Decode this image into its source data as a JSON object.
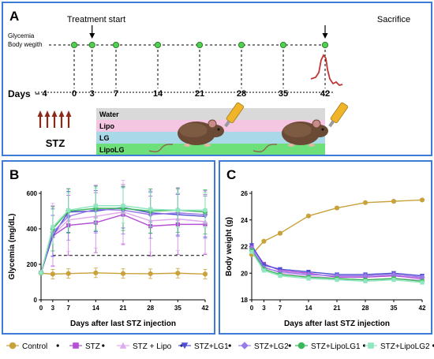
{
  "panel_a": {
    "letter": "A",
    "label_glycemia": "Glycemia",
    "label_bodyweight": "Body wegith",
    "treatment_label": "Treatment start",
    "sacrifice_label": "Sacrifice",
    "days_label": "Days",
    "stz_label": "STZ",
    "timeline_days": [
      "– 4",
      "0",
      "3",
      "7",
      "14",
      "21",
      "28",
      "35",
      "42"
    ],
    "timeline_values": [
      -4,
      0,
      3,
      7,
      14,
      21,
      28,
      35,
      42
    ],
    "measurement_days": [
      0,
      3,
      7,
      14,
      21,
      28,
      35,
      42
    ],
    "treatment_day": 3,
    "sacrifice_day": 42,
    "groups": [
      {
        "label": "Water",
        "color": "#d9d9d9"
      },
      {
        "label": "Lipo",
        "color": "#f4c6e2"
      },
      {
        "label": "LG",
        "color": "#a9d8e8"
      },
      {
        "label": "LipoLG",
        "color": "#6ee07a"
      }
    ]
  },
  "chart_data": [
    {
      "type": "line",
      "panel": "B",
      "xlabel": "Days after last STZ injection",
      "ylabel": "Glycemia (mg/dL)",
      "x": [
        0,
        3,
        7,
        14,
        21,
        28,
        35,
        42
      ],
      "xticks": [
        "0",
        "3",
        "7",
        "14",
        "21",
        "28",
        "35",
        "42"
      ],
      "ylim": [
        0,
        600
      ],
      "yticks": [
        "0",
        "200",
        "400",
        "600"
      ],
      "threshold": 250,
      "series": [
        {
          "name": "Control",
          "color": "#c9a23c",
          "values": [
            150,
            145,
            148,
            152,
            148,
            147,
            150,
            145
          ]
        },
        {
          "name": "STZ",
          "color": "#b44fd6",
          "values": [
            152,
            360,
            420,
            435,
            480,
            415,
            425,
            425
          ]
        },
        {
          "name": "STZ + Lipo",
          "color": "#e0a8ef",
          "values": [
            152,
            365,
            450,
            470,
            495,
            445,
            455,
            440
          ]
        },
        {
          "name": "STZ+LG1",
          "color": "#4f4fd6",
          "values": [
            152,
            360,
            495,
            500,
            520,
            490,
            480,
            470
          ]
        },
        {
          "name": "STZ+LG2",
          "color": "#9a7ae6",
          "values": [
            152,
            380,
            470,
            510,
            505,
            480,
            490,
            480
          ]
        },
        {
          "name": "STZ+LipoLG1",
          "color": "#3bb85a",
          "values": [
            152,
            400,
            500,
            515,
            515,
            500,
            505,
            495
          ]
        },
        {
          "name": "STZ+LipoLG2",
          "color": "#8fe6c0",
          "values": [
            152,
            410,
            505,
            530,
            530,
            510,
            505,
            505
          ]
        }
      ]
    },
    {
      "type": "line",
      "panel": "C",
      "xlabel": "Days after last STZ injection",
      "ylabel": "Body weight (g)",
      "x": [
        0,
        3,
        7,
        14,
        21,
        28,
        35,
        42
      ],
      "xticks": [
        "0",
        "3",
        "7",
        "14",
        "21",
        "28",
        "35",
        "42"
      ],
      "ylim": [
        18,
        26
      ],
      "yticks": [
        "18",
        "20",
        "22",
        "24",
        "26"
      ],
      "series": [
        {
          "name": "Control",
          "color": "#c9a23c",
          "values": [
            21.4,
            22.4,
            23.0,
            24.3,
            24.9,
            25.3,
            25.4,
            25.5
          ]
        },
        {
          "name": "STZ",
          "color": "#b44fd6",
          "values": [
            22.0,
            20.7,
            20.2,
            20.0,
            19.7,
            19.7,
            19.8,
            19.6
          ]
        },
        {
          "name": "STZ + Lipo",
          "color": "#e0a8ef",
          "values": [
            21.8,
            20.5,
            20.0,
            19.8,
            19.6,
            19.5,
            19.6,
            19.5
          ]
        },
        {
          "name": "STZ+LG1",
          "color": "#4f4fd6",
          "values": [
            22.1,
            20.6,
            20.3,
            20.1,
            19.9,
            19.9,
            20.0,
            19.8
          ]
        },
        {
          "name": "STZ+LG2",
          "color": "#9a7ae6",
          "values": [
            21.9,
            20.4,
            20.1,
            19.9,
            19.8,
            19.8,
            19.9,
            19.7
          ]
        },
        {
          "name": "STZ+LipoLG1",
          "color": "#3bb85a",
          "values": [
            21.7,
            20.3,
            19.9,
            19.7,
            19.6,
            19.5,
            19.6,
            19.4
          ]
        },
        {
          "name": "STZ+LipoLG2",
          "color": "#8fe6c0",
          "values": [
            21.6,
            20.2,
            19.8,
            19.6,
            19.5,
            19.4,
            19.5,
            19.3
          ]
        }
      ]
    }
  ],
  "legend": [
    {
      "name": "Control",
      "color": "#c9a23c",
      "marker": "circle"
    },
    {
      "name": "STZ",
      "color": "#b44fd6",
      "marker": "square"
    },
    {
      "name": "STZ + Lipo",
      "color": "#e0a8ef",
      "marker": "triangle-up"
    },
    {
      "name": "STZ+LG1",
      "color": "#4f4fd6",
      "marker": "triangle-down"
    },
    {
      "name": "STZ+LG2",
      "color": "#9a7ae6",
      "marker": "diamond"
    },
    {
      "name": "STZ+LipoLG1",
      "color": "#3bb85a",
      "marker": "circle"
    },
    {
      "name": "STZ+LipoLG2",
      "color": "#8fe6c0",
      "marker": "square"
    }
  ]
}
